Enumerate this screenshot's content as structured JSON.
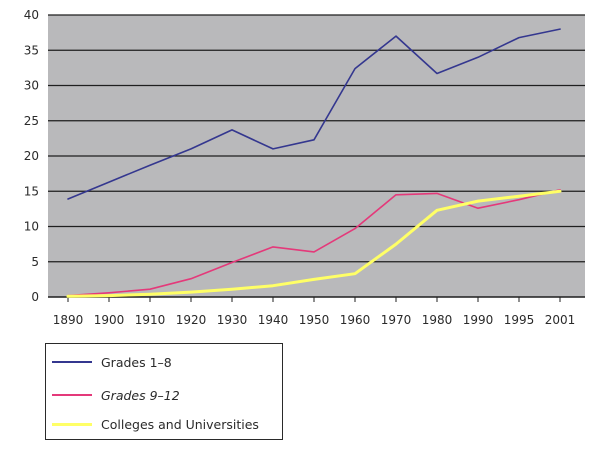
{
  "chart_data": {
    "type": "line",
    "x": [
      "1890",
      "1900",
      "1910",
      "1920",
      "1930",
      "1940",
      "1950",
      "1960",
      "1970",
      "1980",
      "1990",
      "1995",
      "2001"
    ],
    "ylim": [
      0,
      40
    ],
    "yticks": [
      0,
      5,
      10,
      15,
      20,
      25,
      30,
      35,
      40
    ],
    "grid": true,
    "plot_background": "#b9b9bb",
    "legend_position": "bottom-left, below chart",
    "series": [
      {
        "name": "Grades 1–8",
        "italic": false,
        "color": "#34378f",
        "values": [
          13.9,
          16.3,
          18.7,
          21.0,
          23.7,
          21.0,
          22.3,
          32.4,
          37.0,
          31.7,
          34.0,
          36.8,
          38.0
        ]
      },
      {
        "name": "Grades 9–12",
        "italic": true,
        "color": "#e4397a",
        "values": [
          0.2,
          0.6,
          1.1,
          2.6,
          4.9,
          7.1,
          6.4,
          9.7,
          14.5,
          14.7,
          12.6,
          13.8,
          15.2
        ]
      },
      {
        "name": "Colleges and Universities",
        "italic": false,
        "color": "#ffff66",
        "values": [
          0.1,
          0.2,
          0.4,
          0.7,
          1.1,
          1.6,
          2.5,
          3.3,
          7.5,
          12.3,
          13.6,
          14.3,
          15.0
        ]
      }
    ]
  }
}
